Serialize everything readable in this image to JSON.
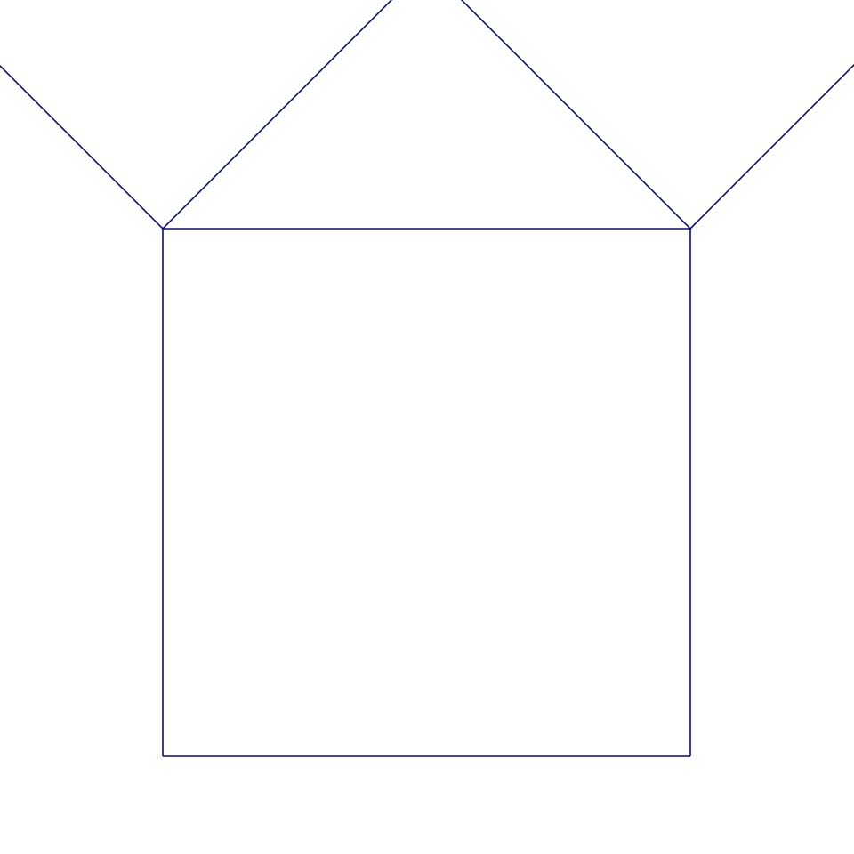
{
  "figure": {
    "kind": "pythagoras-tree-fractal",
    "shape": "square",
    "branch_angle_deg": 45,
    "scale_ratio": 0.7071,
    "depth": 16,
    "colors": {
      "background": "#ffffff",
      "stroke": "#0c0c6e"
    }
  }
}
